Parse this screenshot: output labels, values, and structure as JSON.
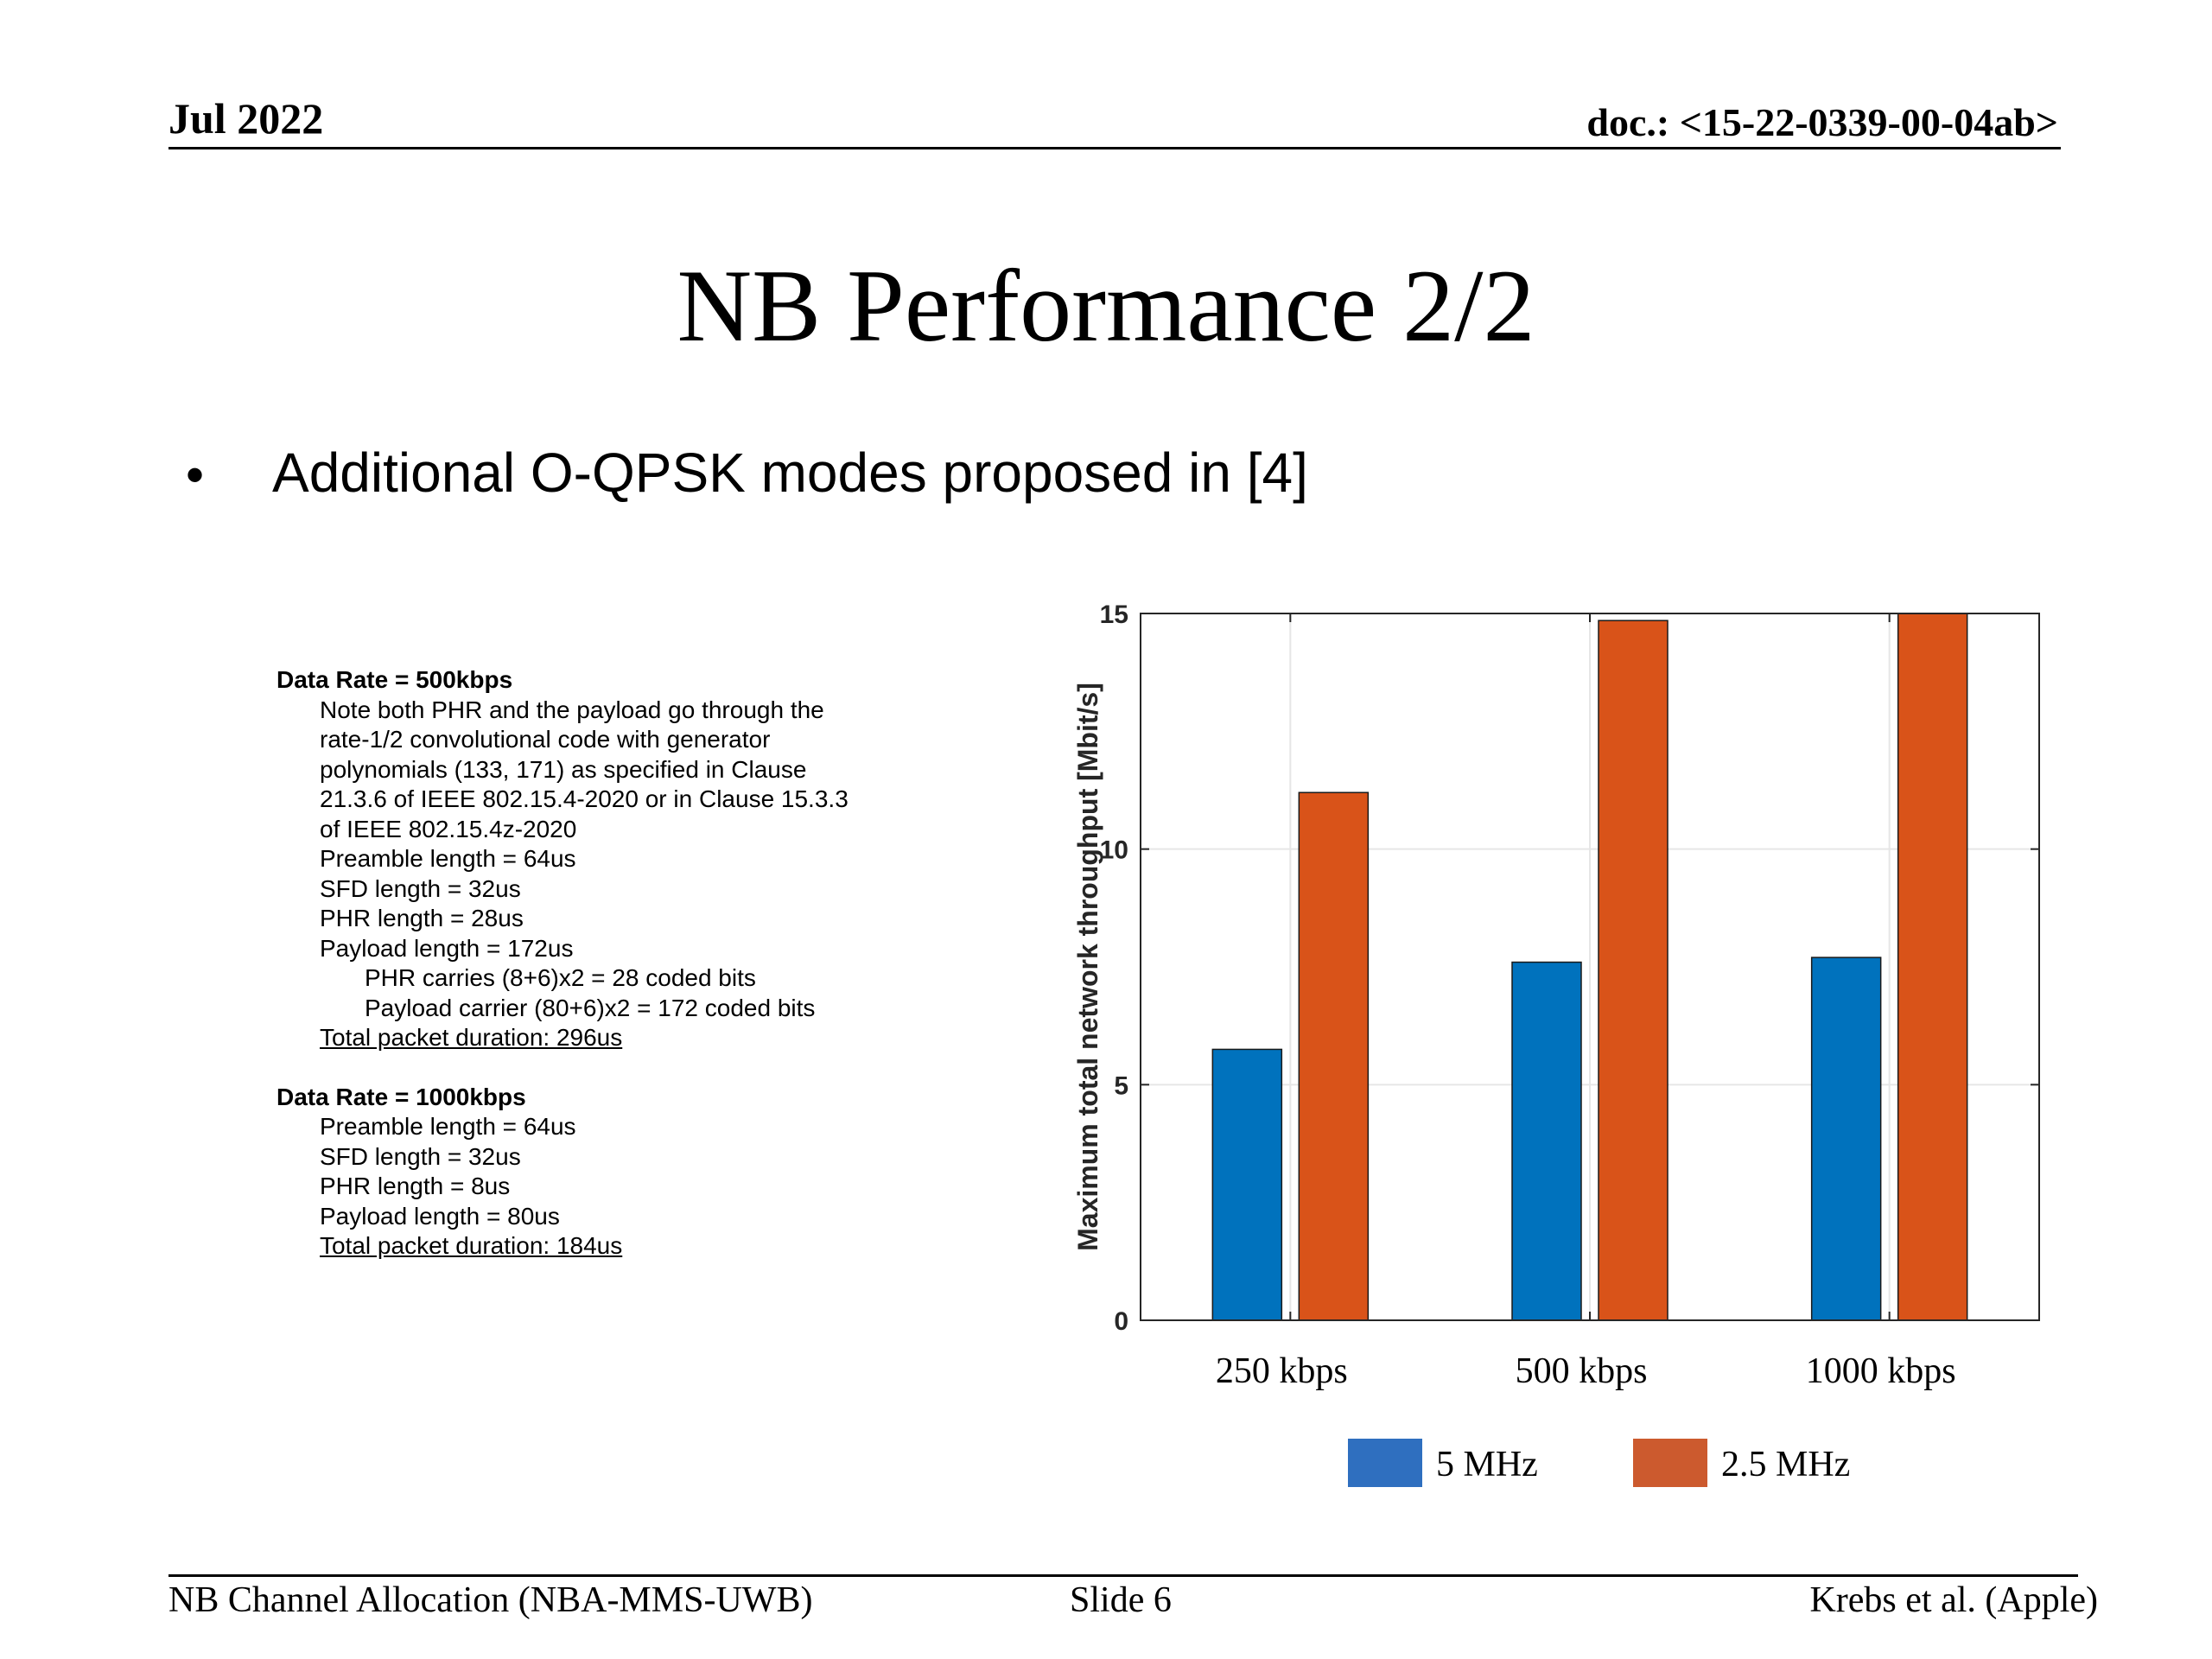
{
  "header": {
    "date": "Jul 2022",
    "doc": "doc.: <15-22-0339-00-04ab>"
  },
  "title": "NB Performance 2/2",
  "bullet": "Additional O-QPSK modes proposed in [4]",
  "notes": [
    {
      "heading": "Data Rate = 500kbps",
      "lines": [
        {
          "text": "Note both PHR and the payload go through the",
          "level": 1
        },
        {
          "text": "rate-1/2 convolutional code with generator",
          "level": 1
        },
        {
          "text": "polynomials (133, 171) as specified in Clause",
          "level": 1
        },
        {
          "text": "21.3.6 of IEEE 802.15.4-2020 or in Clause 15.3.3",
          "level": 1
        },
        {
          "text": "of IEEE 802.15.4z-2020",
          "level": 1
        },
        {
          "text": "Preamble length = 64us",
          "level": 1
        },
        {
          "text": "SFD length = 32us",
          "level": 1
        },
        {
          "text": "PHR length = 28us",
          "level": 1
        },
        {
          "text": "Payload length = 172us",
          "level": 1
        },
        {
          "text": "PHR carries (8+6)x2 = 28 coded bits",
          "level": 2
        },
        {
          "text": "Payload carrier (80+6)x2 = 172 coded bits",
          "level": 2
        },
        {
          "text": "Total packet duration: 296us",
          "level": 1,
          "underline": true
        }
      ]
    },
    {
      "heading": "Data Rate = 1000kbps",
      "lines": [
        {
          "text": "Preamble length = 64us",
          "level": 1
        },
        {
          "text": "SFD length = 32us",
          "level": 1
        },
        {
          "text": "PHR length = 8us",
          "level": 1
        },
        {
          "text": "Payload length = 80us",
          "level": 1
        },
        {
          "text": "Total packet duration: 184us",
          "level": 1,
          "underline": true
        }
      ]
    }
  ],
  "chart_data": {
    "type": "bar",
    "ylabel": "Maximum total network throughput [Mbit/s]",
    "categories": [
      "250 kbps",
      "500 kbps",
      "1000 kbps"
    ],
    "series": [
      {
        "name": "5 MHz",
        "values": [
          5.75,
          7.6,
          7.7
        ],
        "color": "#0072BD"
      },
      {
        "name": "2.5 MHz",
        "values": [
          11.2,
          14.85,
          15.0
        ],
        "color": "#D95319"
      }
    ],
    "ylim": [
      0,
      15
    ],
    "yticks": [
      0,
      5,
      10,
      15
    ],
    "grid": true,
    "legend_position": "bottom",
    "legend_colors": [
      "#2F6FBF",
      "#CC5A2E"
    ]
  },
  "footer": {
    "left": "NB Channel Allocation (NBA-MMS-UWB)",
    "center": "Slide 6",
    "right": "Krebs et al. (Apple)"
  }
}
